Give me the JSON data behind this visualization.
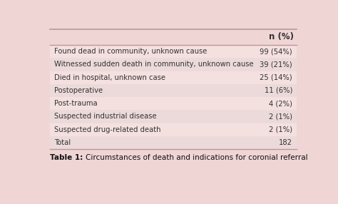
{
  "header": [
    "",
    "n (%)"
  ],
  "rows": [
    [
      "Found dead in community, unknown cause",
      "99 (54%)"
    ],
    [
      "Witnessed sudden death in community, unknown cause",
      "39 (21%)"
    ],
    [
      "Died in hospital, unknown case",
      "25 (14%)"
    ],
    [
      "Postoperative",
      "11 (6%)"
    ],
    [
      "Post-trauma",
      "4 (2%)"
    ],
    [
      "Suspected industrial disease",
      "2 (1%)"
    ],
    [
      "Suspected drug-related death",
      "2 (1%)"
    ],
    [
      "Total",
      "182"
    ]
  ],
  "caption_bold": "Table 1: ",
  "caption_normal": "Circumstances of death and indications for coronial referral",
  "row_colors": [
    "#f5e0e0",
    "#ecdada"
  ],
  "text_color": "#333333",
  "caption_color": "#111111",
  "line_color": "#b89898",
  "fig_bg": "#f0d5d5"
}
